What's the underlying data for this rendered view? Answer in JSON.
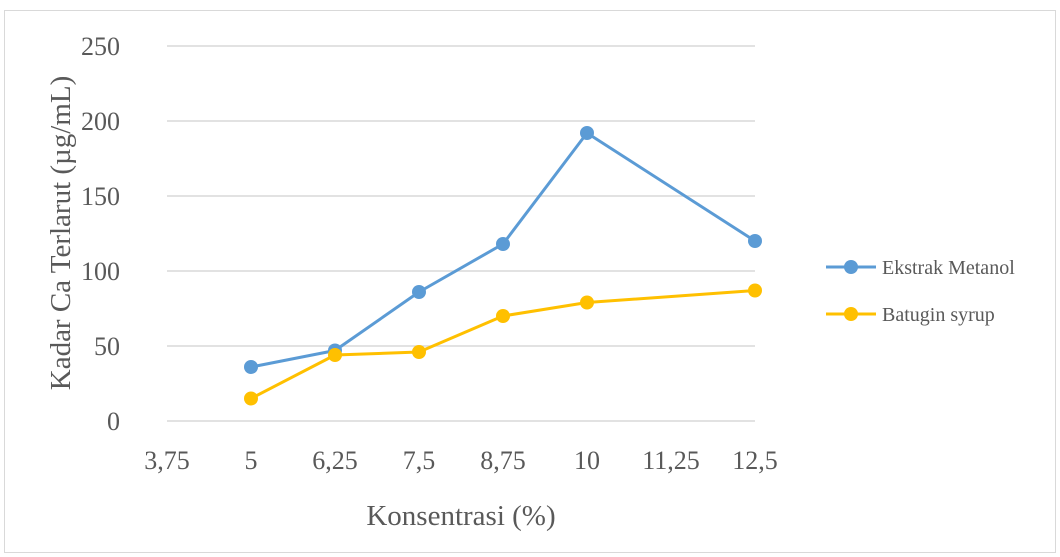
{
  "chart_data": {
    "type": "line",
    "title": "",
    "xlabel": "Konsentrasi (%)",
    "ylabel": "Kadar Ca Terlarut  (µg/mL)",
    "x": [
      5,
      6.25,
      7.5,
      8.75,
      10,
      12.5
    ],
    "xlim": [
      3.75,
      12.5
    ],
    "ylim": [
      0,
      250
    ],
    "xticks": [
      3.75,
      5,
      6.25,
      7.5,
      8.75,
      10,
      11.25,
      12.5
    ],
    "xtick_labels": [
      "3,75",
      "5",
      "6,25",
      "7,5",
      "8,75",
      "10",
      "11,25",
      "12,5"
    ],
    "yticks": [
      0,
      50,
      100,
      150,
      200,
      250
    ],
    "ytick_labels": [
      "0",
      "50",
      "100",
      "150",
      "200",
      "250"
    ],
    "grid": "horizontal",
    "legend_position": "right",
    "series": [
      {
        "name": "Ekstrak Metanol",
        "color": "#5B9BD5",
        "values": [
          36,
          47,
          86,
          118,
          192,
          120
        ]
      },
      {
        "name": "Batugin syrup",
        "color": "#FFC000",
        "values": [
          15,
          44,
          46,
          70,
          79,
          87
        ]
      }
    ]
  }
}
